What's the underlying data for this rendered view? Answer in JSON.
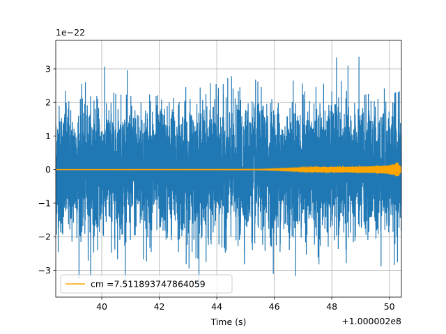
{
  "chart_data": {
    "type": "line",
    "xlabel": "Time (s)",
    "ylabel": "",
    "x_offset_text": "+1.000002e8",
    "y_scale_text": "1e−22",
    "xlim": [
      38.4,
      50.42
    ],
    "ylim": [
      -3.8,
      3.85
    ],
    "x_ticks": [
      40,
      42,
      44,
      46,
      48,
      50
    ],
    "x_tick_labels": [
      "40",
      "42",
      "44",
      "46",
      "48",
      "50"
    ],
    "y_ticks": [
      -3,
      -2,
      -1,
      0,
      1,
      2,
      3
    ],
    "y_tick_labels": [
      "−3",
      "−2",
      "−1",
      "0",
      "1",
      "2",
      "3"
    ],
    "grid": true,
    "legend_location": "lower-left",
    "series": [
      {
        "name": "",
        "color": "#1f77b4",
        "kind": "noise",
        "x_range": [
          38.4,
          50.42
        ],
        "typical_amplitude": 1.5,
        "peak_amplitude": 3.55
      },
      {
        "name": "cm =7.511893747864059",
        "color": "#ffa500",
        "kind": "chirp",
        "x_range": [
          38.4,
          50.42
        ],
        "envelope_x": [
          38.4,
          45.5,
          46.5,
          47.5,
          48.5,
          49.5,
          50.0,
          50.3,
          50.42
        ],
        "envelope_y": [
          0.0,
          0.01,
          0.04,
          0.07,
          0.08,
          0.1,
          0.13,
          0.22,
          0.05
        ]
      }
    ]
  }
}
